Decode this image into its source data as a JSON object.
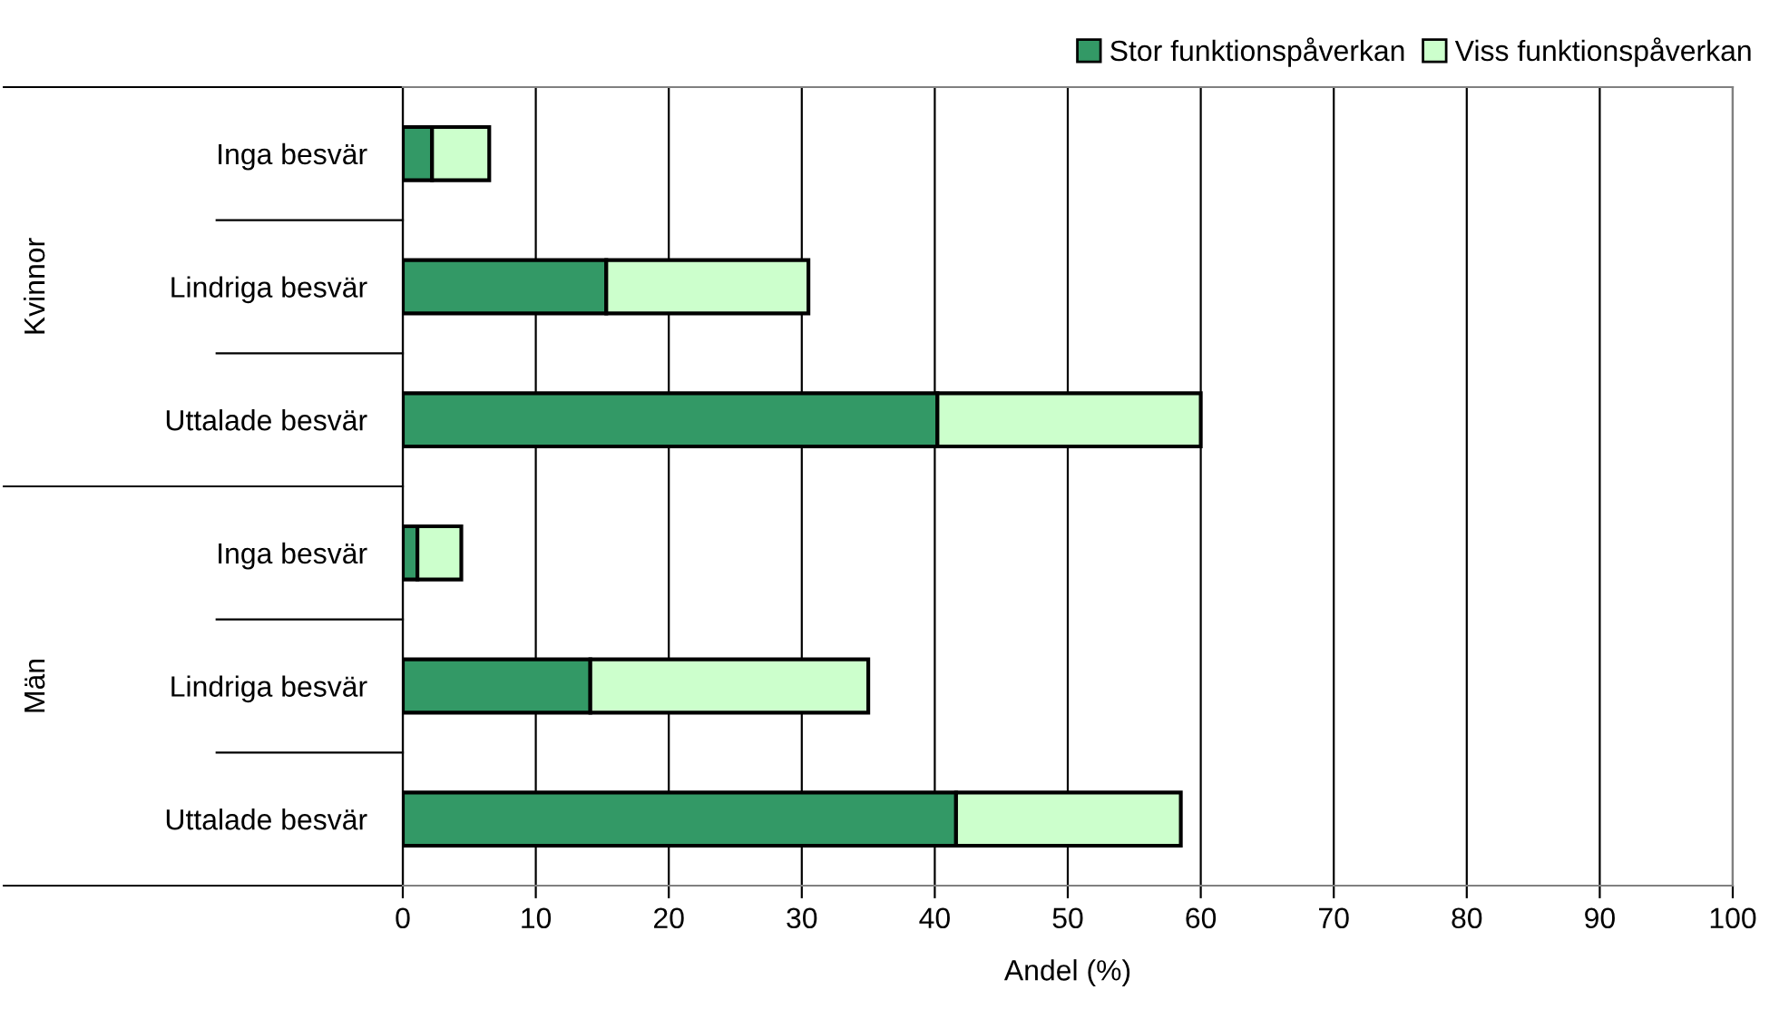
{
  "chart_data": {
    "type": "bar",
    "orientation": "horizontal",
    "stacked": true,
    "categories": [
      "Inga besvär",
      "Lindriga besvär",
      "Uttalade besvär",
      "Inga besvär",
      "Lindriga besvär",
      "Uttalade besvär"
    ],
    "series": [
      {
        "name": "Stor funktionspåverkan",
        "color": "#339966",
        "values": [
          2.2,
          15.3,
          40.2,
          1.1,
          14.1,
          41.6
        ]
      },
      {
        "name": "Viss funktionspåverkan",
        "color": "#ccffcc",
        "values": [
          4.3,
          15.2,
          19.8,
          3.3,
          20.9,
          16.9
        ]
      }
    ],
    "xlabel": "Andel (%)",
    "xlim": [
      0,
      100
    ],
    "xticks": [
      0,
      10,
      20,
      30,
      40,
      50,
      60,
      70,
      80,
      90,
      100
    ],
    "grid": "x",
    "legend": "top right",
    "annotations": [
      "Kvinnor",
      "Män"
    ]
  }
}
